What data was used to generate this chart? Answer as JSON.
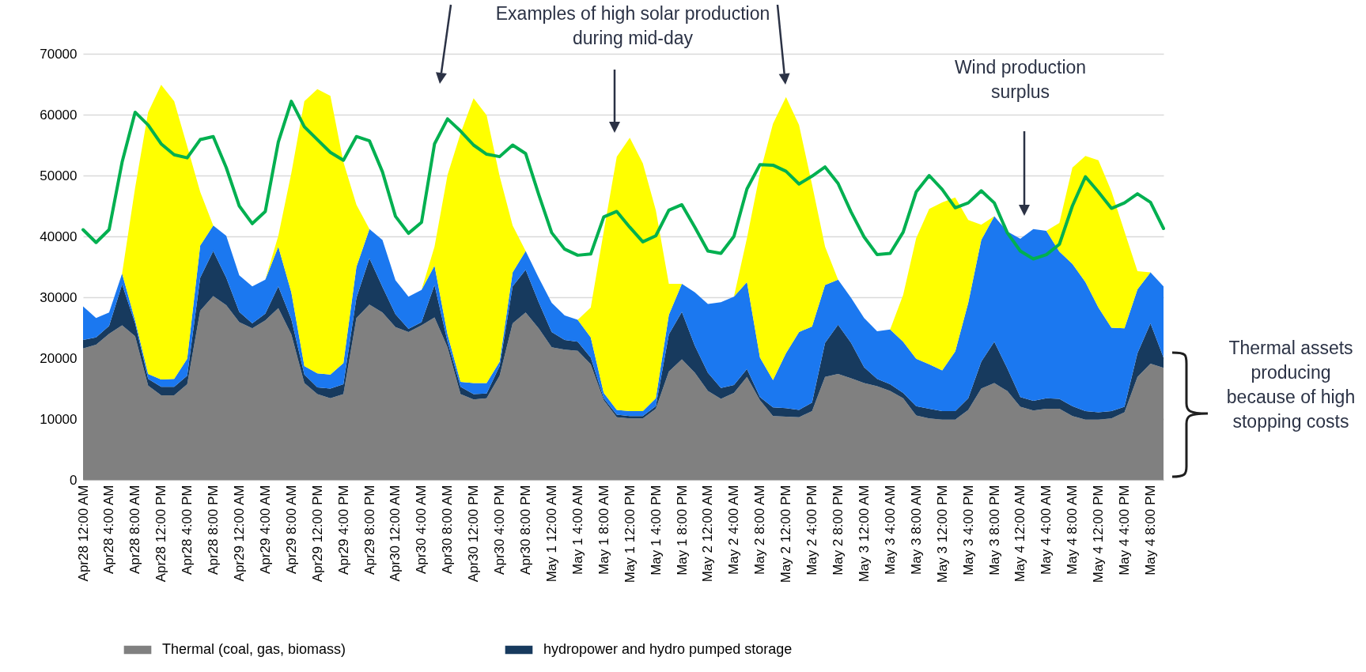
{
  "chart_data": {
    "type": "area",
    "stacked": true,
    "categories": [
      "Apr28 12:00 AM",
      null,
      "Apr28 4:00 AM",
      null,
      "Apr28 8:00 AM",
      null,
      "Apr28 12:00 PM",
      null,
      "Apr28 4:00 PM",
      null,
      "Apr28 8:00 PM",
      null,
      "Apr29 12:00 AM",
      null,
      "Apr29 4:00 AM",
      null,
      "Apr29 8:00 AM",
      null,
      "Apr29 12:00 PM",
      null,
      "Apr29 4:00 PM",
      null,
      "Apr29 8:00 PM",
      null,
      "Apr30 12:00 AM",
      null,
      "Apr30 4:00 AM",
      null,
      "Apr30 8:00 AM",
      null,
      "Apr30 12:00 PM",
      null,
      "Apr30 4:00 PM",
      null,
      "Apr30 8:00 PM",
      null,
      "May 1 12:00 AM",
      null,
      "May 1 4:00 AM",
      null,
      "May 1 8:00 AM",
      null,
      "May 1 12:00 PM",
      null,
      "May 1 4:00 PM",
      null,
      "May 1 8:00 PM",
      null,
      "May 2 12:00 AM",
      null,
      "May 2 4:00 AM",
      null,
      "May 2 8:00 AM",
      null,
      "May 2 12:00 PM",
      null,
      "May 2 4:00 PM",
      null,
      "May 2 8:00 PM",
      null,
      "May 3 12:00 AM",
      null,
      "May 3 4:00 AM",
      null,
      "May 3 8:00 AM",
      null,
      "May 3 12:00 PM",
      null,
      "May 3 4:00 PM",
      null,
      "May 3 8:00 PM",
      null,
      "May 4 12:00 AM",
      null,
      "May 4 4:00 AM",
      null,
      "May 4 8:00 AM",
      null,
      "May 4 12:00 PM",
      null,
      "May 4 4:00 PM",
      null,
      "May 4 8:00 PM",
      null
    ],
    "series": [
      {
        "name": "Thermal (coal, gas, biomass)",
        "color": "#808080",
        "values": [
          21600,
          22200,
          24000,
          25400,
          23600,
          15500,
          13900,
          13900,
          15700,
          27800,
          30200,
          28700,
          25900,
          24900,
          26200,
          28200,
          23900,
          15900,
          14100,
          13400,
          14100,
          26600,
          28800,
          27500,
          25100,
          24300,
          25400,
          26700,
          21800,
          14100,
          13200,
          13400,
          17100,
          25700,
          27500,
          24900,
          21800,
          21400,
          21200,
          19000,
          13100,
          10300,
          10100,
          10100,
          11700,
          17800,
          19800,
          17600,
          14600,
          13300,
          14300,
          16900,
          13100,
          10500,
          10400,
          10300,
          11300,
          16900,
          17400,
          16700,
          15900,
          15400,
          14600,
          13400,
          10600,
          10100,
          9900,
          9900,
          11500,
          15000,
          15900,
          14600,
          12000,
          11400,
          11700,
          11700,
          10500,
          9900,
          9900,
          10100,
          11100,
          16900,
          19100,
          18400
        ]
      },
      {
        "name": "hydropower and hydro pumped storage",
        "color": "#173a5e",
        "values": [
          1400,
          1200,
          1300,
          6700,
          2100,
          1100,
          1400,
          1400,
          1400,
          5400,
          7400,
          4500,
          1700,
          800,
          1100,
          3600,
          2500,
          1400,
          1100,
          1600,
          1600,
          3300,
          7600,
          4200,
          2100,
          500,
          500,
          5300,
          900,
          1200,
          900,
          800,
          1600,
          6100,
          7000,
          4300,
          2500,
          1600,
          1500,
          1100,
          300,
          400,
          400,
          400,
          400,
          6100,
          7800,
          4400,
          3000,
          1800,
          1300,
          1300,
          500,
          1400,
          1400,
          1200,
          1400,
          5600,
          8100,
          5800,
          2600,
          1200,
          1100,
          900,
          1500,
          1600,
          1400,
          1400,
          1900,
          4400,
          6800,
          3700,
          1600,
          1600,
          1700,
          1600,
          1600,
          1400,
          1200,
          1200,
          900,
          3900,
          6600,
          1700
        ]
      },
      {
        "color": "#1b78f0",
        "values": [
          5500,
          3200,
          2200,
          1800,
          500,
          800,
          1200,
          1300,
          2800,
          5300,
          4200,
          6900,
          6000,
          6100,
          5600,
          6500,
          4400,
          1400,
          2300,
          2300,
          3500,
          5100,
          4800,
          7700,
          5600,
          5300,
          5300,
          3200,
          1200,
          800,
          1800,
          1700,
          700,
          2300,
          3100,
          4000,
          4800,
          4000,
          3600,
          3300,
          900,
          800,
          800,
          800,
          1300,
          3200,
          4600,
          8800,
          11300,
          14100,
          14500,
          14300,
          6500,
          4500,
          9000,
          12800,
          12500,
          9500,
          7400,
          7400,
          8100,
          7800,
          9000,
          8400,
          7800,
          7300,
          6700,
          9800,
          15700,
          20000,
          20600,
          22500,
          26000,
          28200,
          27500,
          24200,
          23400,
          21200,
          17200,
          13700,
          12900,
          10500,
          8400,
          11700
        ]
      },
      {
        "color": "#ffff00",
        "values": [
          0,
          0,
          0,
          0,
          21800,
          43000,
          48400,
          45600,
          34900,
          8800,
          0,
          0,
          0,
          0,
          0,
          1800,
          19600,
          43500,
          46700,
          45800,
          33000,
          10200,
          0,
          0,
          0,
          0,
          0,
          3100,
          26200,
          40800,
          46800,
          44000,
          30500,
          7700,
          0,
          0,
          0,
          0,
          0,
          4900,
          26500,
          41600,
          44900,
          40700,
          30900,
          5100,
          0,
          0,
          0,
          0,
          0,
          7200,
          30300,
          42100,
          42100,
          34000,
          23300,
          6300,
          0,
          0,
          0,
          0,
          0,
          7700,
          19800,
          25500,
          27600,
          25300,
          13600,
          2500,
          0,
          0,
          0,
          0,
          0,
          4700,
          15800,
          20700,
          24200,
          22400,
          15900,
          3000,
          0,
          0
        ]
      },
      {
        "type": "line",
        "color": "#00b050",
        "values": [
          41100,
          39000,
          41100,
          52200,
          60400,
          58300,
          55200,
          53400,
          52900,
          55900,
          56400,
          51300,
          45000,
          42100,
          44100,
          55500,
          62200,
          58000,
          55900,
          53800,
          52500,
          56400,
          55700,
          50600,
          43300,
          40500,
          42300,
          55200,
          59300,
          57300,
          55000,
          53500,
          53100,
          55000,
          53600,
          46900,
          40600,
          37900,
          36900,
          37100,
          43200,
          44100,
          41500,
          39100,
          40100,
          44300,
          45200,
          41500,
          37600,
          37200,
          40000,
          47800,
          51800,
          51700,
          50700,
          48600,
          49900,
          51400,
          48700,
          44000,
          39900,
          37000,
          37200,
          40700,
          47300,
          50000,
          47700,
          44700,
          45500,
          47500,
          45500,
          40600,
          37600,
          36300,
          37000,
          38700,
          45000,
          49800,
          47300,
          44600,
          45500,
          47000,
          45600,
          41300
        ]
      }
    ],
    "ylim": [
      0,
      70000
    ],
    "yticks": [
      0,
      10000,
      20000,
      30000,
      40000,
      50000,
      60000,
      70000
    ],
    "grid": "y",
    "legend": "bottom",
    "annotations": [
      "Examples of high solar production during mid-day",
      "Wind production surplus",
      "Thermal assets producing because of high stopping costs"
    ]
  }
}
